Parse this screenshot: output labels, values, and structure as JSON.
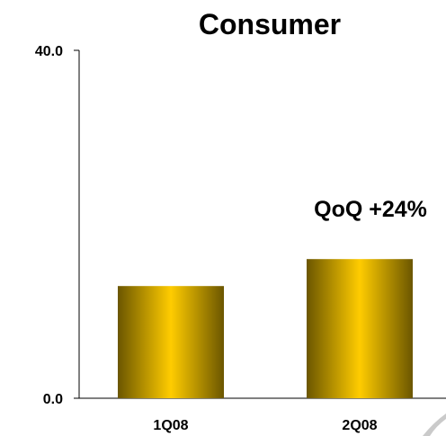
{
  "chart_data": {
    "type": "bar",
    "title": "Consumer",
    "categories": [
      "1Q08",
      "2Q08"
    ],
    "values": [
      12.9,
      16.0
    ],
    "ylim": [
      0,
      40
    ],
    "y_tick_labels": [
      "0.0",
      "40.0"
    ],
    "xlabel": "",
    "ylabel": "",
    "grid": false,
    "annotation": "QoQ +24%",
    "bar_colors": {
      "edge_dark": "#6b5600",
      "mid_light": "#ffcc00"
    }
  }
}
